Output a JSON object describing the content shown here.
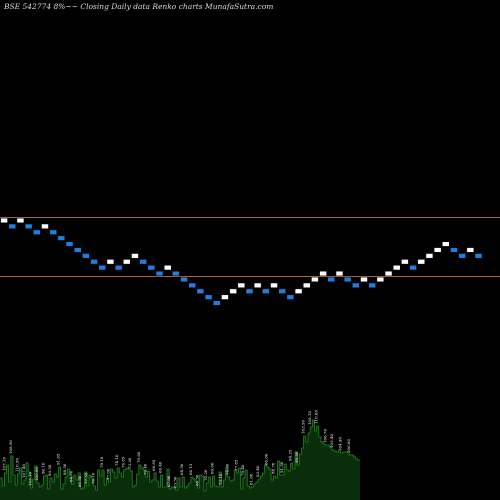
{
  "title": "BSE 542774  8%~~ Closing Daily data  Renko  charts MunafaSutra.com",
  "colors": {
    "background": "#000000",
    "up_brick": "#ffffff",
    "down_brick": "#1f7fe0",
    "brick_stroke": "#000000",
    "reference_line": "#b0652a",
    "volume_fill": "#0a2e0a",
    "volume_top": "#1e8a1e"
  },
  "chart_data": {
    "type": "renko",
    "bricks": [
      {
        "i": 0,
        "level": 0,
        "dir": "up"
      },
      {
        "i": 1,
        "level": -1,
        "dir": "down"
      },
      {
        "i": 2,
        "level": 0,
        "dir": "up"
      },
      {
        "i": 3,
        "level": -1,
        "dir": "down"
      },
      {
        "i": 4,
        "level": -2,
        "dir": "down"
      },
      {
        "i": 5,
        "level": -1,
        "dir": "up"
      },
      {
        "i": 6,
        "level": -2,
        "dir": "down"
      },
      {
        "i": 7,
        "level": -3,
        "dir": "down"
      },
      {
        "i": 8,
        "level": -4,
        "dir": "down"
      },
      {
        "i": 9,
        "level": -5,
        "dir": "down"
      },
      {
        "i": 10,
        "level": -6,
        "dir": "down"
      },
      {
        "i": 11,
        "level": -7,
        "dir": "down"
      },
      {
        "i": 12,
        "level": -8,
        "dir": "down"
      },
      {
        "i": 13,
        "level": -7,
        "dir": "up"
      },
      {
        "i": 14,
        "level": -8,
        "dir": "down"
      },
      {
        "i": 15,
        "level": -7,
        "dir": "up"
      },
      {
        "i": 16,
        "level": -6,
        "dir": "up"
      },
      {
        "i": 17,
        "level": -7,
        "dir": "down"
      },
      {
        "i": 18,
        "level": -8,
        "dir": "down"
      },
      {
        "i": 19,
        "level": -9,
        "dir": "down"
      },
      {
        "i": 20,
        "level": -8,
        "dir": "up"
      },
      {
        "i": 21,
        "level": -9,
        "dir": "down"
      },
      {
        "i": 22,
        "level": -10,
        "dir": "down"
      },
      {
        "i": 23,
        "level": -11,
        "dir": "down"
      },
      {
        "i": 24,
        "level": -12,
        "dir": "down"
      },
      {
        "i": 25,
        "level": -13,
        "dir": "down"
      },
      {
        "i": 26,
        "level": -14,
        "dir": "down"
      },
      {
        "i": 27,
        "level": -13,
        "dir": "up"
      },
      {
        "i": 28,
        "level": -12,
        "dir": "up"
      },
      {
        "i": 29,
        "level": -11,
        "dir": "up"
      },
      {
        "i": 30,
        "level": -12,
        "dir": "down"
      },
      {
        "i": 31,
        "level": -11,
        "dir": "up"
      },
      {
        "i": 32,
        "level": -12,
        "dir": "down"
      },
      {
        "i": 33,
        "level": -11,
        "dir": "up"
      },
      {
        "i": 34,
        "level": -12,
        "dir": "down"
      },
      {
        "i": 35,
        "level": -13,
        "dir": "down"
      },
      {
        "i": 36,
        "level": -12,
        "dir": "up"
      },
      {
        "i": 37,
        "level": -11,
        "dir": "up"
      },
      {
        "i": 38,
        "level": -10,
        "dir": "up"
      },
      {
        "i": 39,
        "level": -9,
        "dir": "up"
      },
      {
        "i": 40,
        "level": -10,
        "dir": "down"
      },
      {
        "i": 41,
        "level": -9,
        "dir": "up"
      },
      {
        "i": 42,
        "level": -10,
        "dir": "down"
      },
      {
        "i": 43,
        "level": -11,
        "dir": "down"
      },
      {
        "i": 44,
        "level": -10,
        "dir": "up"
      },
      {
        "i": 45,
        "level": -11,
        "dir": "down"
      },
      {
        "i": 46,
        "level": -10,
        "dir": "up"
      },
      {
        "i": 47,
        "level": -9,
        "dir": "up"
      },
      {
        "i": 48,
        "level": -8,
        "dir": "up"
      },
      {
        "i": 49,
        "level": -7,
        "dir": "up"
      },
      {
        "i": 50,
        "level": -8,
        "dir": "down"
      },
      {
        "i": 51,
        "level": -7,
        "dir": "up"
      },
      {
        "i": 52,
        "level": -6,
        "dir": "up"
      },
      {
        "i": 53,
        "level": -5,
        "dir": "up"
      },
      {
        "i": 54,
        "level": -4,
        "dir": "up"
      },
      {
        "i": 55,
        "level": -5,
        "dir": "down"
      },
      {
        "i": 56,
        "level": -6,
        "dir": "down"
      },
      {
        "i": 57,
        "level": -5,
        "dir": "up"
      },
      {
        "i": 58,
        "level": -6,
        "dir": "down"
      }
    ],
    "reference_levels": [
      0,
      -10
    ],
    "volume": {
      "heights": [
        22,
        14,
        27,
        35,
        18,
        44,
        25,
        15,
        26,
        32,
        16,
        20,
        37,
        28,
        12,
        21,
        34,
        17,
        13,
        15,
        24,
        25,
        11,
        22,
        18,
        26,
        23,
        33,
        11,
        16,
        23,
        31,
        25,
        16,
        25,
        20,
        27,
        11,
        12,
        28,
        14,
        25,
        22,
        14,
        10,
        30,
        24,
        30,
        15,
        22,
        18,
        31,
        28,
        22,
        32,
        27,
        23,
        30,
        32,
        31,
        29,
        13,
        15,
        26,
        35,
        32,
        30,
        23,
        29,
        18,
        20,
        27,
        19,
        13,
        25,
        13,
        13,
        31,
        11,
        13,
        12,
        10,
        22,
        13,
        23,
        12,
        14,
        17,
        23,
        21,
        19,
        12,
        25,
        24,
        9,
        17,
        23,
        13,
        24,
        14,
        13,
        28,
        13,
        20,
        32,
        23,
        19,
        20,
        30,
        27,
        32,
        11,
        22,
        30,
        14,
        12,
        13,
        16,
        18,
        21,
        24,
        27,
        35,
        33,
        31,
        20,
        24,
        22,
        39,
        25,
        25,
        36,
        30,
        29,
        37,
        31,
        48,
        35,
        46,
        52,
        64,
        58,
        67,
        73,
        80,
        69,
        74,
        63,
        58,
        56,
        55,
        55,
        53,
        50,
        49,
        48,
        49,
        47,
        48,
        48,
        48,
        45,
        45,
        43,
        41,
        40
      ],
      "labels": [
        {
          "bar": 2,
          "text": "107.10"
        },
        {
          "bar": 5,
          "text": "108.50"
        },
        {
          "bar": 8,
          "text": "110.50"
        },
        {
          "bar": 11,
          "text": "107.40"
        },
        {
          "bar": 14,
          "text": "103.10"
        },
        {
          "bar": 17,
          "text": "100.90"
        },
        {
          "bar": 20,
          "text": "96.10"
        },
        {
          "bar": 23,
          "text": "93.50"
        },
        {
          "bar": 27,
          "text": "91.85"
        },
        {
          "bar": 30,
          "text": "88.50"
        },
        {
          "bar": 33,
          "text": "84.70"
        },
        {
          "bar": 37,
          "text": "80.90"
        },
        {
          "bar": 40,
          "text": "77.55"
        },
        {
          "bar": 43,
          "text": "76.10"
        },
        {
          "bar": 47,
          "text": "79.10"
        },
        {
          "bar": 50,
          "text": "77.00"
        },
        {
          "bar": 54,
          "text": "74.10"
        },
        {
          "bar": 57,
          "text": "76.85"
        },
        {
          "bar": 60,
          "text": "73.20"
        },
        {
          "bar": 64,
          "text": "70.60"
        },
        {
          "bar": 67,
          "text": "72.40"
        },
        {
          "bar": 71,
          "text": "68.85"
        },
        {
          "bar": 74,
          "text": "66.40"
        },
        {
          "bar": 78,
          "text": "67.90"
        },
        {
          "bar": 81,
          "text": "63.50"
        },
        {
          "bar": 84,
          "text": "64.50"
        },
        {
          "bar": 88,
          "text": "66.15"
        },
        {
          "bar": 91,
          "text": "68.50"
        },
        {
          "bar": 95,
          "text": "70.20"
        },
        {
          "bar": 98,
          "text": "69.60"
        },
        {
          "bar": 102,
          "text": "73.10"
        },
        {
          "bar": 105,
          "text": "74.90"
        },
        {
          "bar": 109,
          "text": "77.85"
        },
        {
          "bar": 112,
          "text": "79.40"
        },
        {
          "bar": 116,
          "text": "81.60"
        },
        {
          "bar": 119,
          "text": "83.40"
        },
        {
          "bar": 123,
          "text": "86.00"
        },
        {
          "bar": 126,
          "text": "88.70"
        },
        {
          "bar": 130,
          "text": "91.50"
        },
        {
          "bar": 134,
          "text": "94.25"
        },
        {
          "bar": 137,
          "text": "99.80"
        },
        {
          "bar": 140,
          "text": "103.50"
        },
        {
          "bar": 143,
          "text": "108.10"
        },
        {
          "bar": 146,
          "text": "110.00"
        },
        {
          "bar": 150,
          "text": "106.70"
        },
        {
          "bar": 153,
          "text": "105.40"
        },
        {
          "bar": 157,
          "text": "104.90"
        },
        {
          "bar": 161,
          "text": "106.60"
        }
      ]
    }
  }
}
